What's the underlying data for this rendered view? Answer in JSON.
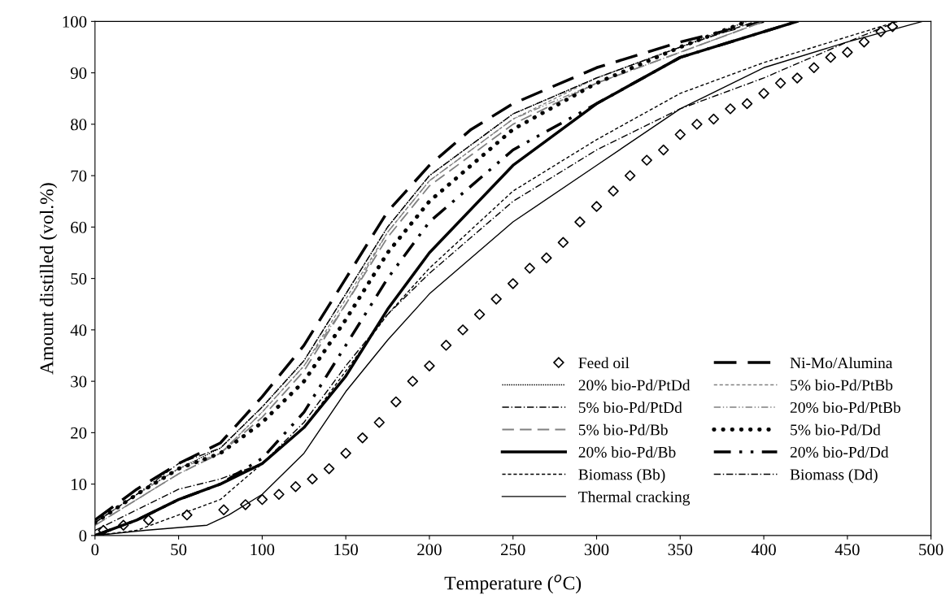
{
  "chart_data": {
    "type": "line",
    "xlabel": "Temperature ($^{o}$C)",
    "ylabel": "Amount distilled (vol.%)",
    "xlim": [
      0,
      500
    ],
    "ylim": [
      0,
      100
    ],
    "xticks": [
      0,
      50,
      100,
      150,
      200,
      250,
      300,
      350,
      400,
      450,
      500
    ],
    "yticks": [
      0,
      10,
      20,
      30,
      40,
      50,
      60,
      70,
      80,
      90,
      100
    ],
    "grid": false,
    "legend": "bottom right",
    "series": [
      {
        "name": "Feed oil",
        "type": "scatter",
        "marker": "diamond",
        "color": "#000000",
        "x": [
          5,
          17,
          32,
          55,
          77,
          90,
          100,
          110,
          120,
          130,
          140,
          150,
          160,
          170,
          180,
          190,
          200,
          210,
          220,
          230,
          240,
          250,
          260,
          270,
          280,
          290,
          300,
          310,
          320,
          330,
          340,
          350,
          360,
          370,
          380,
          390,
          400,
          410,
          420,
          430,
          440,
          450,
          460,
          470,
          477
        ],
        "values": [
          1,
          2,
          3,
          4,
          5,
          6,
          7,
          8,
          9.5,
          11,
          13,
          16,
          19,
          22,
          26,
          30,
          33,
          37,
          40,
          43,
          46,
          49,
          52,
          54,
          57,
          61,
          64,
          67,
          70,
          73,
          75,
          78,
          80,
          81,
          83,
          84,
          86,
          88,
          89,
          91,
          93,
          94,
          96,
          98,
          99
        ]
      },
      {
        "name": "Ni-Mo/Alumina",
        "line_style": "longdash",
        "color": "#000000",
        "x": [
          0,
          25,
          50,
          75,
          100,
          125,
          150,
          175,
          200,
          225,
          250,
          300,
          350,
          375,
          400
        ],
        "values": [
          3,
          9,
          14,
          18,
          27,
          37,
          50,
          63,
          72,
          79,
          84,
          91,
          96,
          98,
          100
        ]
      },
      {
        "name": "20% bio-Pd/PtDd",
        "line_style": "dotted",
        "color": "#000000",
        "x": [
          0,
          25,
          50,
          75,
          100,
          125,
          150,
          175,
          200,
          250,
          300,
          350,
          390
        ],
        "values": [
          2.5,
          8,
          13,
          17,
          25,
          34,
          47,
          60,
          70,
          82,
          89,
          95,
          100
        ]
      },
      {
        "name": "5% bio-Pd/PtBb",
        "line_style": "dashed",
        "color": "#808080",
        "x": [
          0,
          25,
          50,
          75,
          100,
          125,
          150,
          175,
          200,
          250,
          300,
          350,
          395
        ],
        "values": [
          2.5,
          8,
          13,
          16,
          24,
          33,
          46,
          59,
          69,
          81,
          89,
          95,
          100
        ]
      },
      {
        "name": "5% bio-Pd/PtDd",
        "line_style": "dashdot",
        "color": "#000000",
        "x": [
          0,
          25,
          50,
          75,
          100,
          125,
          150,
          175,
          200,
          250,
          300,
          350,
          395
        ],
        "values": [
          2.5,
          8,
          14,
          17,
          25,
          34,
          47,
          60,
          70,
          82,
          89,
          95,
          100
        ]
      },
      {
        "name": "20% bio-Pd/PtBb",
        "line_style": "dashdotdot",
        "color": "#808080",
        "x": [
          0,
          25,
          50,
          75,
          100,
          125,
          150,
          175,
          200,
          250,
          300,
          350,
          400
        ],
        "values": [
          2,
          7,
          12,
          16,
          24,
          33,
          45,
          59,
          69,
          81,
          88,
          94,
          100
        ]
      },
      {
        "name": "5% bio-Pd/Bb",
        "line_style": "graydash",
        "color": "#808080",
        "x": [
          0,
          25,
          50,
          75,
          100,
          125,
          150,
          175,
          200,
          250,
          300,
          350,
          400
        ],
        "values": [
          2,
          7,
          12,
          16,
          23,
          32,
          45,
          58,
          68,
          80,
          88,
          94,
          100
        ]
      },
      {
        "name": "5% bio-Pd/Dd",
        "line_style": "bolddotted",
        "color": "#000000",
        "x": [
          0,
          25,
          50,
          75,
          100,
          125,
          150,
          175,
          200,
          250,
          300,
          350,
          390
        ],
        "values": [
          2.5,
          8,
          13,
          16,
          22,
          30,
          42,
          55,
          65,
          79,
          88,
          95,
          100
        ]
      },
      {
        "name": "20% bio-Pd/Bb",
        "line_style": "solid",
        "color": "#000000",
        "x": [
          0,
          25,
          50,
          75,
          100,
          125,
          150,
          175,
          200,
          250,
          300,
          350,
          420
        ],
        "values": [
          0,
          3,
          7,
          10,
          14,
          21,
          31,
          44,
          55,
          72,
          84,
          93,
          100
        ]
      },
      {
        "name": "20% bio-Pd/Dd",
        "line_style": "longdashdotdot",
        "color": "#000000",
        "x": [
          0,
          25,
          50,
          75,
          100,
          125,
          150,
          175,
          200,
          250,
          300,
          350,
          400,
          420
        ],
        "values": [
          0,
          3,
          7,
          10,
          15,
          24,
          37,
          50,
          61,
          75,
          84,
          93,
          98,
          100
        ]
      },
      {
        "name": "Biomass (Bb)",
        "line_style": "dashed",
        "color": "#000000",
        "x": [
          0,
          25,
          50,
          75,
          100,
          125,
          150,
          175,
          200,
          250,
          300,
          350,
          400,
          450,
          480
        ],
        "values": [
          0,
          1,
          4,
          7,
          14,
          21,
          32,
          43,
          52,
          67,
          77,
          86,
          92,
          97,
          100
        ]
      },
      {
        "name": "Biomass (Dd)",
        "line_style": "dashdot",
        "color": "#000000",
        "x": [
          0,
          25,
          50,
          75,
          100,
          125,
          150,
          175,
          200,
          250,
          300,
          350,
          400,
          450,
          480
        ],
        "values": [
          1,
          5,
          9,
          11,
          14,
          22,
          33,
          43,
          51,
          65,
          75,
          83,
          89,
          96,
          100
        ]
      },
      {
        "name": "Thermal cracking",
        "line_style": "solid",
        "color": "#000000",
        "x": [
          0,
          30,
          67,
          80,
          100,
          125,
          150,
          175,
          200,
          250,
          300,
          350,
          400,
          450,
          495
        ],
        "values": [
          0,
          1,
          2,
          4,
          8,
          16,
          28,
          38,
          47,
          61,
          72,
          83,
          91,
          96,
          100
        ]
      }
    ]
  }
}
